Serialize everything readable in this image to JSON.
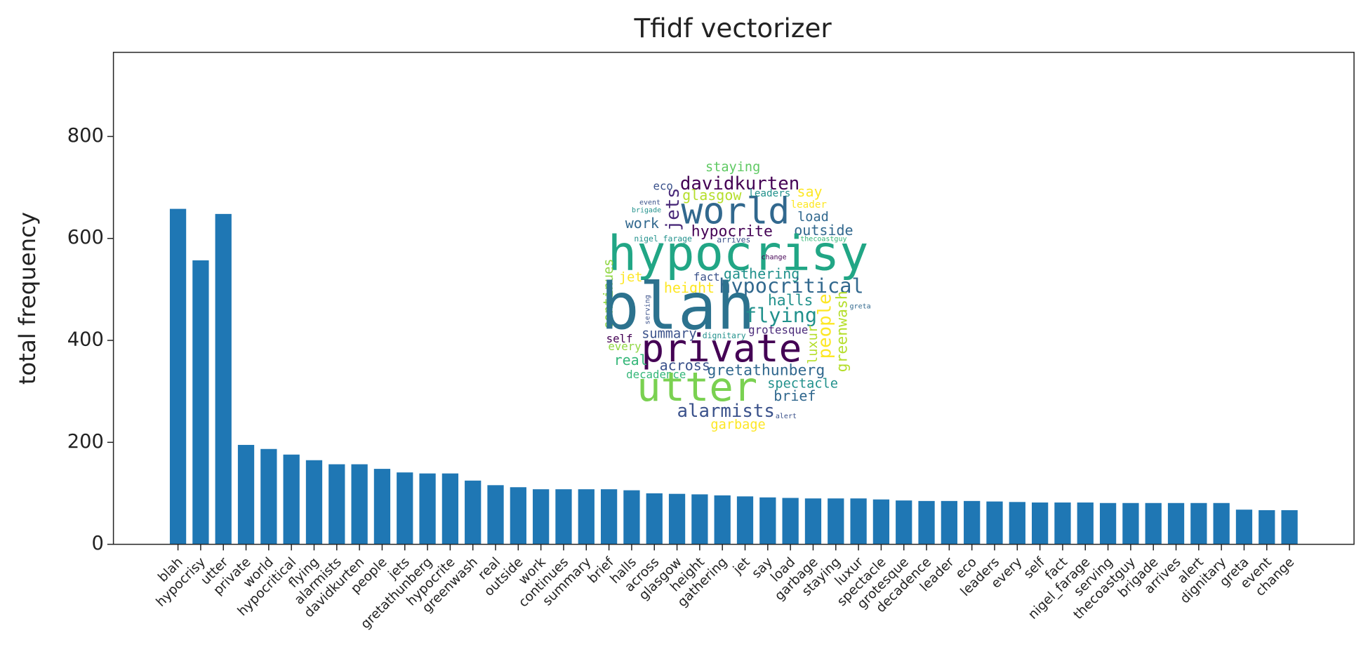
{
  "chart_data": {
    "type": "bar",
    "title": "Tfidf vectorizer",
    "y_label": "total frequency",
    "categories": [
      "blah",
      "hypocrisy",
      "utter",
      "private",
      "world",
      "hypocritical",
      "flying",
      "alarmists",
      "davidkurten",
      "people",
      "jets",
      "gretathunberg",
      "hypocrite",
      "greenwash",
      "real",
      "outside",
      "work",
      "continues",
      "summary",
      "brief",
      "halls",
      "across",
      "glasgow",
      "height",
      "gathering",
      "jet",
      "say",
      "load",
      "garbage",
      "staying",
      "luxur",
      "spectacle",
      "grotesque",
      "decadence",
      "leader",
      "eco",
      "leaders",
      "every",
      "self",
      "fact",
      "nigel_farage",
      "serving",
      "thecoastguy",
      "brigade",
      "arrives",
      "alert",
      "dignitary",
      "greta",
      "event",
      "change"
    ],
    "values": [
      658,
      557,
      648,
      195,
      187,
      176,
      165,
      157,
      157,
      148,
      141,
      139,
      139,
      125,
      116,
      112,
      108,
      108,
      108,
      108,
      106,
      100,
      99,
      98,
      96,
      94,
      92,
      91,
      90,
      90,
      90,
      88,
      86,
      85,
      85,
      85,
      84,
      83,
      82,
      82,
      82,
      81,
      81,
      81,
      81,
      81,
      81,
      68,
      67,
      67
    ],
    "color": "#1f77b4",
    "ylim": [
      0,
      965
    ],
    "yticks": [
      0,
      200,
      400,
      600,
      800
    ],
    "grid": false,
    "wordcloud": [
      "staying",
      "eco",
      "davidkurten",
      "jets",
      "world",
      "glasgow",
      "leaders",
      "say",
      "event",
      "brigade",
      "leader",
      "load",
      "work",
      "hypocrite",
      "outside",
      "nigel_farage",
      "arrives",
      "thecoastguy",
      "hypocrisy",
      "change",
      "continues",
      "jet",
      "fact",
      "gathering",
      "height",
      "hypocritical",
      "blah",
      "halls",
      "greenwash",
      "greta",
      "serving",
      "flying",
      "people",
      "luxur",
      "self",
      "summary",
      "dignitary",
      "grotesque",
      "every",
      "private",
      "real",
      "across",
      "decadence",
      "gretathunberg",
      "spectacle",
      "utter",
      "brief",
      "alarmists",
      "alert",
      "garbage"
    ]
  }
}
